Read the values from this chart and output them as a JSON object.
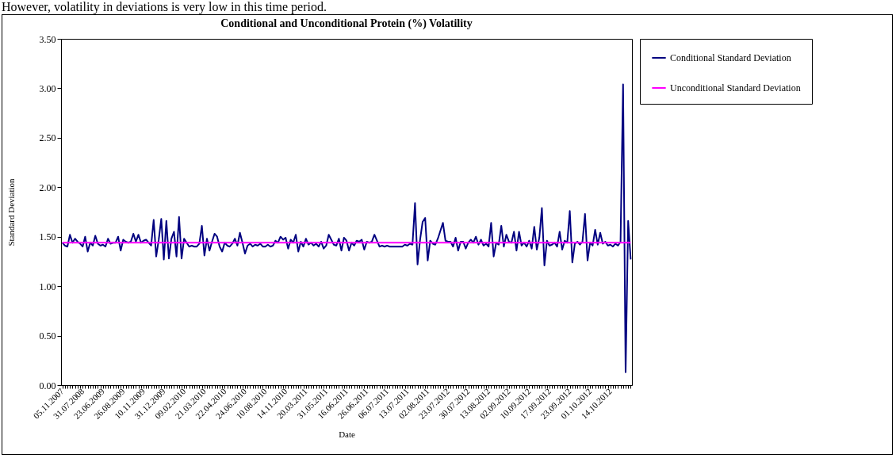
{
  "chart_data": {
    "type": "line",
    "title": "Conditional and Unconditional Protein (%) Volatility",
    "xlabel": "Date",
    "ylabel": "Standard Deviation",
    "annotations": [
      "However, volatility in deviations is very low in this time period."
    ],
    "categories": [
      "05.11.2007",
      null,
      null,
      null,
      null,
      null,
      null,
      null,
      "31.07.2008",
      null,
      null,
      null,
      null,
      null,
      null,
      null,
      "23.06.2009",
      null,
      null,
      null,
      null,
      null,
      null,
      null,
      "26.08.2009",
      null,
      null,
      null,
      null,
      null,
      null,
      null,
      "10.11.2009",
      null,
      null,
      null,
      null,
      null,
      null,
      null,
      "31.12.2009",
      null,
      null,
      null,
      null,
      null,
      null,
      null,
      "09.02.2010",
      null,
      null,
      null,
      null,
      null,
      null,
      null,
      "21.03.2010",
      null,
      null,
      null,
      null,
      null,
      null,
      null,
      "22.04.2010",
      null,
      null,
      null,
      null,
      null,
      null,
      null,
      "24.06.2010",
      null,
      null,
      null,
      null,
      null,
      null,
      null,
      "10.08.2010",
      null,
      null,
      null,
      null,
      null,
      null,
      null,
      "14.11.2010",
      null,
      null,
      null,
      null,
      null,
      null,
      null,
      "20.03.2011",
      null,
      null,
      null,
      null,
      null,
      null,
      null,
      "31.05.2011",
      null,
      null,
      null,
      null,
      null,
      null,
      null,
      "16.06.2011",
      null,
      null,
      null,
      null,
      null,
      null,
      null,
      "26.06.2011",
      null,
      null,
      null,
      null,
      null,
      null,
      null,
      "06.07.2011",
      null,
      null,
      null,
      null,
      null,
      null,
      null,
      "13.07.2011",
      null,
      null,
      null,
      null,
      null,
      null,
      null,
      "02.08.2011",
      null,
      null,
      null,
      null,
      null,
      null,
      null,
      "23.07.2012",
      null,
      null,
      null,
      null,
      null,
      null,
      null,
      "30.07.2012",
      null,
      null,
      null,
      null,
      null,
      null,
      null,
      "13.08.2012",
      null,
      null,
      null,
      null,
      null,
      null,
      null,
      "02.09.2012",
      null,
      null,
      null,
      null,
      null,
      null,
      null,
      "10.09.2012",
      null,
      null,
      null,
      null,
      null,
      null,
      null,
      "17.09.2012",
      null,
      null,
      null,
      null,
      null,
      null,
      null,
      "23.09.2012",
      null,
      null,
      null,
      null,
      null,
      null,
      null,
      "01.10.2012",
      null,
      null,
      null,
      null,
      null,
      null,
      null,
      "14.10.2012",
      null,
      null,
      null,
      null,
      null,
      null,
      null,
      null
    ],
    "series": [
      {
        "name": "Conditional Standard Deviation",
        "color": "#000080",
        "values": [
          1.44,
          1.41,
          1.4,
          1.52,
          1.44,
          1.48,
          1.45,
          1.43,
          1.4,
          1.5,
          1.35,
          1.44,
          1.41,
          1.51,
          1.43,
          1.41,
          1.42,
          1.4,
          1.48,
          1.43,
          1.44,
          1.44,
          1.5,
          1.36,
          1.47,
          1.45,
          1.44,
          1.45,
          1.53,
          1.45,
          1.52,
          1.44,
          1.46,
          1.47,
          1.44,
          1.41,
          1.67,
          1.3,
          1.47,
          1.68,
          1.27,
          1.66,
          1.28,
          1.48,
          1.55,
          1.3,
          1.7,
          1.28,
          1.48,
          1.44,
          1.4,
          1.41,
          1.4,
          1.4,
          1.43,
          1.61,
          1.31,
          1.48,
          1.36,
          1.45,
          1.53,
          1.5,
          1.4,
          1.35,
          1.44,
          1.41,
          1.4,
          1.43,
          1.48,
          1.41,
          1.54,
          1.44,
          1.33,
          1.41,
          1.43,
          1.4,
          1.42,
          1.41,
          1.43,
          1.4,
          1.4,
          1.42,
          1.4,
          1.41,
          1.46,
          1.44,
          1.5,
          1.47,
          1.49,
          1.38,
          1.47,
          1.44,
          1.52,
          1.35,
          1.45,
          1.4,
          1.48,
          1.42,
          1.44,
          1.41,
          1.43,
          1.4,
          1.45,
          1.38,
          1.41,
          1.52,
          1.47,
          1.42,
          1.41,
          1.48,
          1.36,
          1.49,
          1.46,
          1.36,
          1.44,
          1.41,
          1.46,
          1.45,
          1.47,
          1.37,
          1.45,
          1.44,
          1.45,
          1.52,
          1.46,
          1.4,
          1.41,
          1.4,
          1.41,
          1.4,
          1.4,
          1.4,
          1.4,
          1.4,
          1.4,
          1.42,
          1.41,
          1.43,
          1.42,
          1.84,
          1.22,
          1.47,
          1.65,
          1.69,
          1.26,
          1.46,
          1.43,
          1.42,
          1.48,
          1.56,
          1.64,
          1.46,
          1.45,
          1.45,
          1.4,
          1.49,
          1.36,
          1.45,
          1.45,
          1.38,
          1.44,
          1.47,
          1.44,
          1.5,
          1.42,
          1.47,
          1.41,
          1.43,
          1.4,
          1.64,
          1.3,
          1.44,
          1.42,
          1.61,
          1.4,
          1.52,
          1.45,
          1.44,
          1.55,
          1.36,
          1.55,
          1.41,
          1.44,
          1.4,
          1.46,
          1.38,
          1.6,
          1.37,
          1.49,
          1.79,
          1.21,
          1.46,
          1.41,
          1.42,
          1.44,
          1.4,
          1.55,
          1.37,
          1.46,
          1.44,
          1.76,
          1.24,
          1.43,
          1.45,
          1.42,
          1.45,
          1.73,
          1.26,
          1.44,
          1.41,
          1.57,
          1.42,
          1.54,
          1.43,
          1.45,
          1.41,
          1.42,
          1.4,
          1.43,
          1.41,
          1.45,
          3.04,
          0.13,
          1.66,
          1.27
        ]
      },
      {
        "name": "Unconditional Standard Deviation",
        "color": "#ff00ff",
        "values": [
          1.44,
          1.44,
          1.44,
          1.44,
          1.44,
          1.44,
          1.44,
          1.44,
          1.44,
          1.44,
          1.44,
          1.44,
          1.44,
          1.44,
          1.44,
          1.44,
          1.44,
          1.44,
          1.44,
          1.44,
          1.44,
          1.44,
          1.44,
          1.44,
          1.44,
          1.44,
          1.44,
          1.44,
          1.44,
          1.44,
          1.44,
          1.44,
          1.44,
          1.44,
          1.44,
          1.44,
          1.44,
          1.44,
          1.44,
          1.44,
          1.44,
          1.44,
          1.44,
          1.44,
          1.44,
          1.44,
          1.44,
          1.44,
          1.44,
          1.44,
          1.44,
          1.44,
          1.44,
          1.44,
          1.44,
          1.44,
          1.44,
          1.44,
          1.44,
          1.44,
          1.44,
          1.44,
          1.44,
          1.44,
          1.44,
          1.44,
          1.44,
          1.44,
          1.44,
          1.44,
          1.44,
          1.44,
          1.44,
          1.44,
          1.44,
          1.44,
          1.44,
          1.44,
          1.44,
          1.44,
          1.44,
          1.44,
          1.44,
          1.44,
          1.44,
          1.44,
          1.44,
          1.44,
          1.44,
          1.44,
          1.44,
          1.44,
          1.44,
          1.44,
          1.44,
          1.44,
          1.44,
          1.44,
          1.44,
          1.44,
          1.44,
          1.44,
          1.44,
          1.44,
          1.44,
          1.44,
          1.44,
          1.44,
          1.44,
          1.44,
          1.44,
          1.44,
          1.44,
          1.44,
          1.44,
          1.44,
          1.44,
          1.44,
          1.44,
          1.44,
          1.44,
          1.44,
          1.44,
          1.44,
          1.44,
          1.44,
          1.44,
          1.44,
          1.44,
          1.44,
          1.44,
          1.44,
          1.44,
          1.44,
          1.44,
          1.44,
          1.44,
          1.44,
          1.44,
          1.44,
          1.44,
          1.44,
          1.44,
          1.44,
          1.44,
          1.44,
          1.44,
          1.44,
          1.44,
          1.44,
          1.44,
          1.44,
          1.44,
          1.44,
          1.44,
          1.44,
          1.44,
          1.44,
          1.44,
          1.44,
          1.44,
          1.44,
          1.44,
          1.44,
          1.44,
          1.44,
          1.44,
          1.44,
          1.44,
          1.44,
          1.44,
          1.44,
          1.44,
          1.44,
          1.44,
          1.44,
          1.44,
          1.44,
          1.44,
          1.44,
          1.44,
          1.44,
          1.44,
          1.44,
          1.44,
          1.44,
          1.44,
          1.44,
          1.44,
          1.44,
          1.44,
          1.44,
          1.44,
          1.44,
          1.44,
          1.44,
          1.44,
          1.44,
          1.44,
          1.44,
          1.44,
          1.44,
          1.44,
          1.44,
          1.44,
          1.44,
          1.44,
          1.44,
          1.44,
          1.44,
          1.44,
          1.44,
          1.44,
          1.44,
          1.44,
          1.44,
          1.44,
          1.44,
          1.44,
          1.44,
          1.44,
          1.44,
          1.44,
          1.44,
          1.44
        ]
      }
    ],
    "ylim": [
      0,
      3.5
    ],
    "yticks": [
      {
        "value": 0,
        "label": "0.00"
      },
      {
        "value": 0.5,
        "label": "0.50"
      },
      {
        "value": 1,
        "label": "1.00"
      },
      {
        "value": 1.5,
        "label": "1.50"
      },
      {
        "value": 2,
        "label": "2.00"
      },
      {
        "value": 2.5,
        "label": "2.50"
      },
      {
        "value": 3,
        "label": "3.00"
      },
      {
        "value": 3.5,
        "label": "3.50"
      }
    ],
    "grid": false,
    "legend": "right",
    "marker": "none",
    "line_style": "solid"
  }
}
